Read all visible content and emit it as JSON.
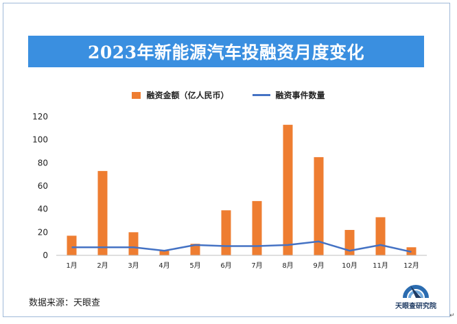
{
  "chart_data": {
    "type": "bar+line",
    "title": "2023年新能源汽车投融资月度变化",
    "categories": [
      "1月",
      "2月",
      "3月",
      "4月",
      "5月",
      "6月",
      "7月",
      "8月",
      "9月",
      "10月",
      "11月",
      "12月"
    ],
    "series": [
      {
        "name": "融资金额（亿人民币）",
        "type": "bar",
        "color": "#ee7d31",
        "values": [
          17,
          73,
          20,
          4,
          10,
          39,
          47,
          113,
          85,
          22,
          33,
          7
        ]
      },
      {
        "name": "融资事件数量",
        "type": "line",
        "color": "#4472c4",
        "values": [
          7,
          7,
          7,
          4,
          9,
          8,
          8,
          9,
          12,
          4,
          9,
          3
        ]
      }
    ],
    "ylim": [
      0,
      120
    ],
    "yticks": [
      0,
      20,
      40,
      60,
      80,
      100,
      120
    ],
    "grid": false,
    "legend_position": "top"
  },
  "source": "数据来源：天眼查",
  "logo_text": "天眼查研究院",
  "return_mark": "↵"
}
